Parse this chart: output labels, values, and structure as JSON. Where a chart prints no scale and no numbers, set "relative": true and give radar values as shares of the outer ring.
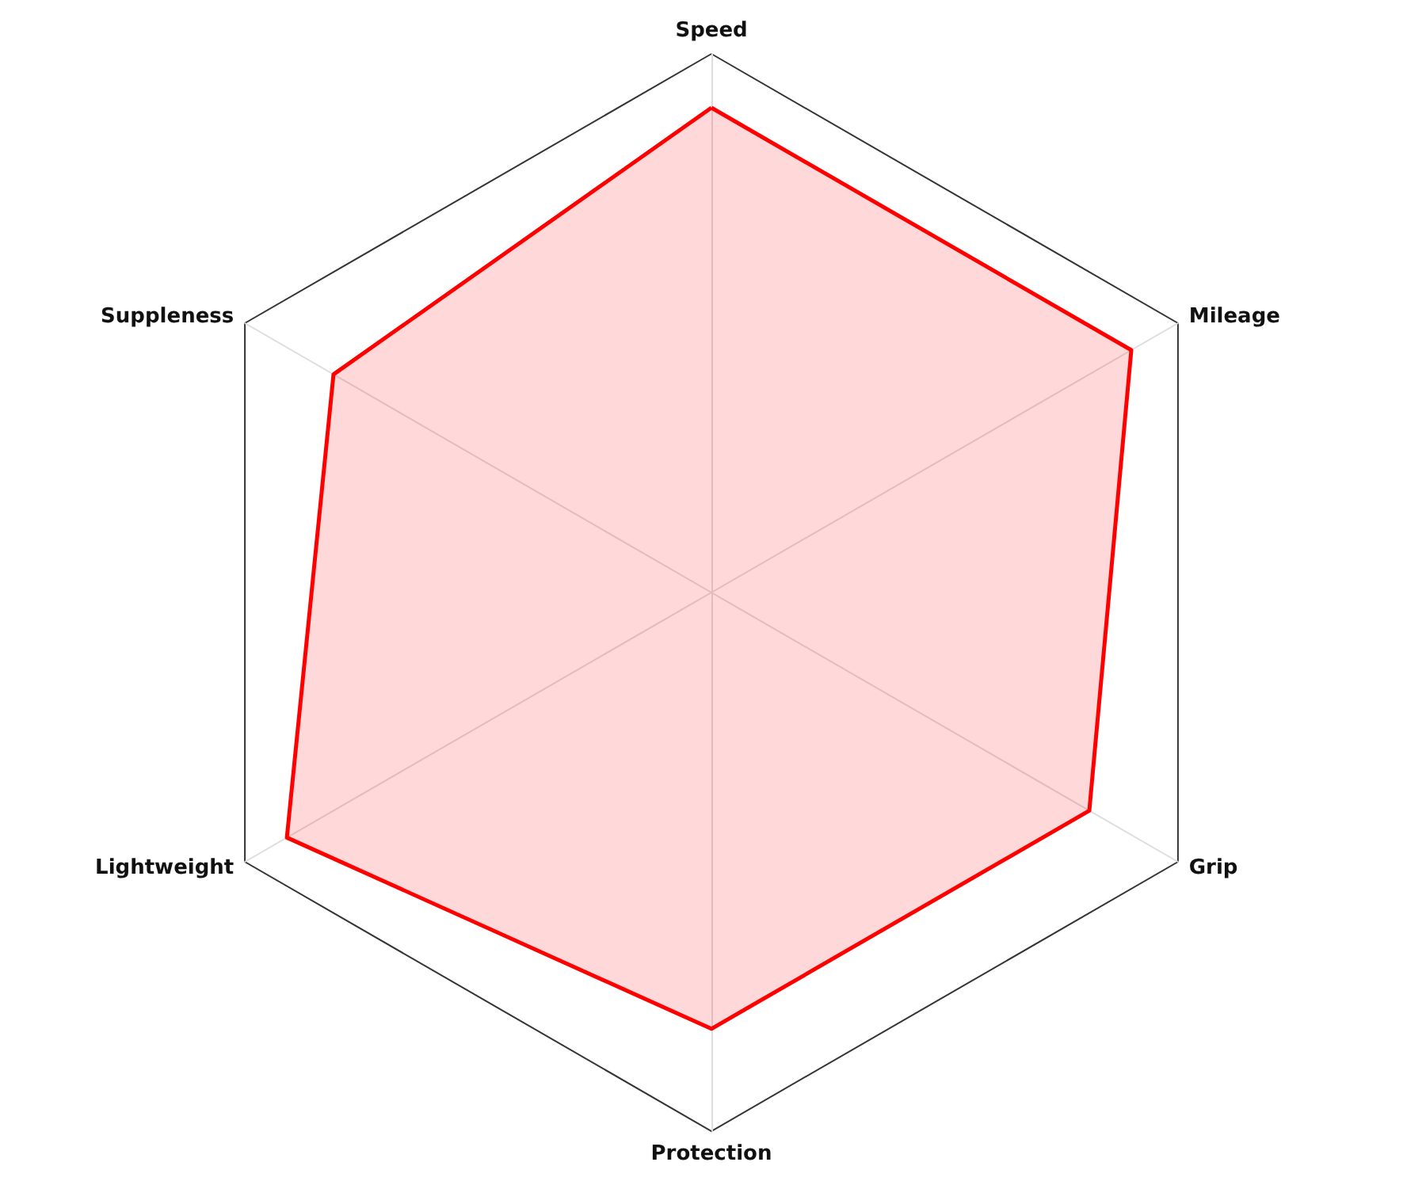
{
  "chart_data": {
    "type": "radar",
    "relative": true,
    "categories": [
      "Speed",
      "Mileage",
      "Grip",
      "Protection",
      "Lightweight",
      "Suppleness"
    ],
    "series": [
      {
        "color": "#ff0000",
        "values": [
          0.9,
          0.9,
          0.81,
          0.81,
          0.91,
          0.81
        ]
      }
    ]
  }
}
